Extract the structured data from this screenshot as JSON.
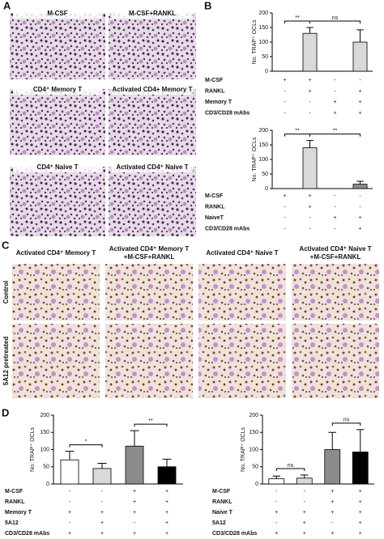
{
  "panel_labels": [
    "A",
    "B",
    "C",
    "D"
  ],
  "panel_a": {
    "images": [
      "M-CSF",
      "M-CSF+RANKL",
      "CD4⁺ Memory T",
      "Activated CD4+ Memory T",
      "CD4⁺ Naive T",
      "Activated CD4⁺ Naive T"
    ]
  },
  "panel_c": {
    "columns": [
      [
        "Activated CD4⁺ Memory T"
      ],
      [
        "Activated CD4⁺ Memory T",
        "+M-CSF+RANKL"
      ],
      [
        "Activated CD4⁺ Naive T"
      ],
      [
        "Activated CD4⁺ Naive T",
        "+M-CSF+RANKL"
      ]
    ],
    "rows": [
      "Control",
      "5A12 pretreated"
    ]
  },
  "chart_data": [
    {
      "type": "bar",
      "ylabel": "No. TRAP⁺ OCLs",
      "categories": [
        null,
        null,
        null,
        null
      ],
      "values": [
        0,
        130,
        0,
        100
      ],
      "errors": [
        0,
        20,
        0,
        42
      ],
      "colors": [
        "#ffffff",
        "#d9d9d9",
        "#ffffff",
        "#d9d9d9"
      ],
      "ylim": [
        0,
        200
      ],
      "yticks": [
        0,
        50,
        100,
        150,
        200
      ],
      "annotations": [
        {
          "text": "**",
          "span": [
            0,
            1
          ]
        },
        {
          "text": "ns",
          "span": [
            1,
            3
          ]
        }
      ],
      "conditions": [
        {
          "name": "M-CSF",
          "values": [
            "+",
            "+",
            "-",
            "-"
          ]
        },
        {
          "name": "RANKL",
          "values": [
            "-",
            "+",
            "-",
            "+"
          ]
        },
        {
          "name": "Memory T",
          "values": [
            "-",
            "-",
            "+",
            "+"
          ]
        },
        {
          "name": "CD3/CD28 mAbs",
          "values": [
            "-",
            "-",
            "+",
            "+"
          ]
        }
      ]
    },
    {
      "type": "bar",
      "ylabel": "No. TRAP⁺ OCLs",
      "categories": [
        null,
        null,
        null,
        null
      ],
      "values": [
        0,
        140,
        0,
        15
      ],
      "errors": [
        0,
        25,
        0,
        10
      ],
      "colors": [
        "#ffffff",
        "#d9d9d9",
        "#ffffff",
        "#8c8c8c"
      ],
      "ylim": [
        0,
        200
      ],
      "yticks": [
        0,
        50,
        100,
        150,
        200
      ],
      "annotations": [
        {
          "text": "**",
          "span": [
            0,
            1
          ]
        },
        {
          "text": "**",
          "span": [
            1,
            3
          ]
        }
      ],
      "conditions": [
        {
          "name": "M-CSF",
          "values": [
            "+",
            "+",
            "-",
            "-"
          ]
        },
        {
          "name": "RANKL",
          "values": [
            "-",
            "+",
            "-",
            "-"
          ]
        },
        {
          "name": "NaiveT",
          "values": [
            "-",
            "-",
            "+",
            "+"
          ]
        },
        {
          "name": "CD3/CD28 mAbs",
          "values": [
            "-",
            "-",
            "-",
            "+"
          ]
        }
      ]
    },
    {
      "type": "bar",
      "ylabel": "No. TRAP⁺ OCLs",
      "categories": [
        null,
        null,
        null,
        null
      ],
      "values": [
        70,
        45,
        110,
        50
      ],
      "errors": [
        25,
        15,
        45,
        22
      ],
      "colors": [
        "#ffffff",
        "#d9d9d9",
        "#8c8c8c",
        "#000000"
      ],
      "ylim": [
        0,
        200
      ],
      "yticks": [
        0,
        50,
        100,
        150,
        200
      ],
      "annotations": [
        {
          "text": "*",
          "span": [
            0,
            1
          ]
        },
        {
          "text": "**",
          "span": [
            2,
            3
          ]
        }
      ],
      "conditions": [
        {
          "name": "M-CSF",
          "values": [
            "-",
            "-",
            "+",
            "+"
          ]
        },
        {
          "name": "RANKL",
          "values": [
            "-",
            "-",
            "+",
            "+"
          ]
        },
        {
          "name": "Memory T",
          "values": [
            "+",
            "+",
            "+",
            "+"
          ]
        },
        {
          "name": "5A12",
          "values": [
            "-",
            "+",
            "-",
            "+"
          ]
        },
        {
          "name": "CD3/CD28 mAbs",
          "values": [
            "+",
            "+",
            "+",
            "+"
          ]
        }
      ]
    },
    {
      "type": "bar",
      "ylabel": "No. TRAP⁺ OCLs",
      "categories": [
        null,
        null,
        null,
        null
      ],
      "values": [
        15,
        17,
        100,
        93
      ],
      "errors": [
        8,
        9,
        50,
        65
      ],
      "colors": [
        "#ffffff",
        "#d9d9d9",
        "#8c8c8c",
        "#000000"
      ],
      "ylim": [
        0,
        200
      ],
      "yticks": [
        0,
        50,
        100,
        150,
        200
      ],
      "annotations": [
        {
          "text": "ns",
          "span": [
            0,
            1
          ]
        },
        {
          "text": "ns",
          "span": [
            2,
            3
          ]
        }
      ],
      "conditions": [
        {
          "name": "M-CSF",
          "values": [
            "-",
            "-",
            "+",
            "+"
          ]
        },
        {
          "name": "RANKL",
          "values": [
            "-",
            "-",
            "+",
            "+"
          ]
        },
        {
          "name": "Naive T",
          "values": [
            "+",
            "+",
            "+",
            "+"
          ]
        },
        {
          "name": "5A12",
          "values": [
            "-",
            "+",
            "-",
            "+"
          ]
        },
        {
          "name": "CD3/CD28 mAbs",
          "values": [
            "+",
            "+",
            "+",
            "+"
          ]
        }
      ]
    }
  ]
}
